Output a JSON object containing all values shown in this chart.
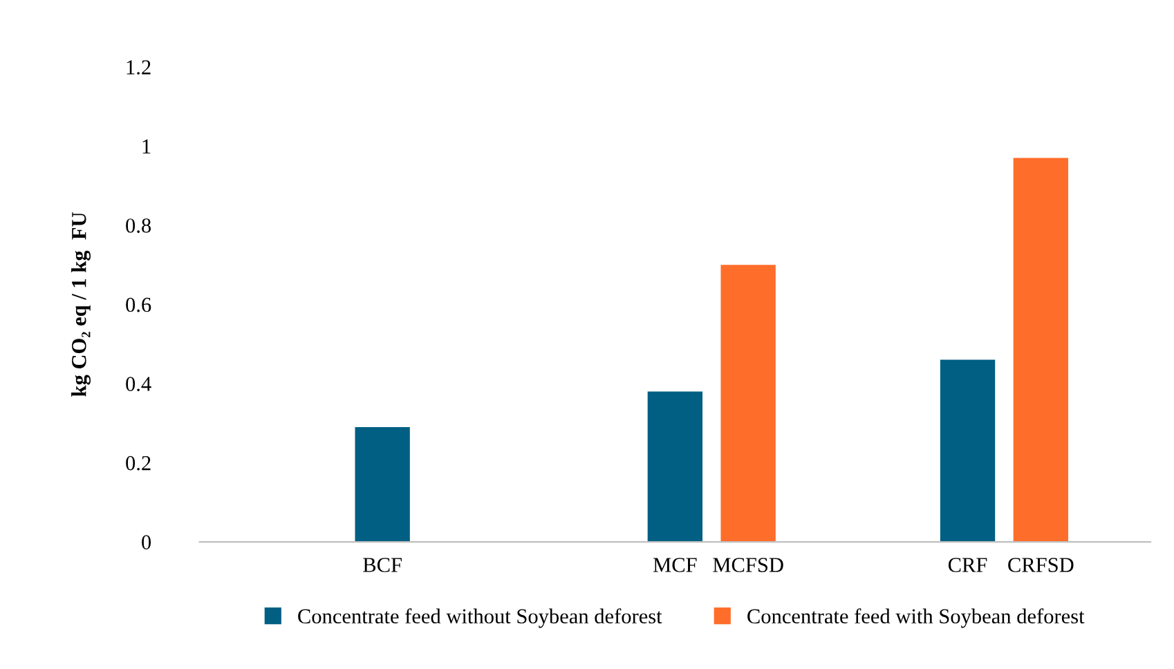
{
  "chart_data": {
    "type": "bar",
    "ylabel": "kg CO₂ eq / 1 kg  FU",
    "categories": [
      null,
      null,
      "BCF",
      null,
      null,
      null,
      "MCF",
      "MCFSD",
      null,
      null,
      "CRF",
      "CRFSD",
      null
    ],
    "series": [
      {
        "name": "Concentrate feed without Soybean deforest",
        "color": "#005f83",
        "values": [
          null,
          null,
          0.29,
          null,
          null,
          null,
          0.38,
          null,
          null,
          null,
          0.46,
          null,
          null
        ]
      },
      {
        "name": "Concentrate feed with Soybean deforest",
        "color": "#ff6d2a",
        "values": [
          null,
          null,
          null,
          null,
          null,
          null,
          null,
          0.7,
          null,
          null,
          null,
          0.97,
          null
        ]
      }
    ],
    "ylim": [
      0,
      1.2
    ],
    "yticks": [
      0,
      {
        "value": 0.2,
        "label": "0.2"
      },
      {
        "value": 0.4,
        "label": "0.4"
      },
      {
        "value": 0.6,
        "label": "0.6"
      },
      {
        "value": 0.8,
        "label": "0.8"
      },
      1,
      {
        "value": 1.2,
        "label": "1.2"
      }
    ],
    "grid": false,
    "legend": "bottom"
  }
}
